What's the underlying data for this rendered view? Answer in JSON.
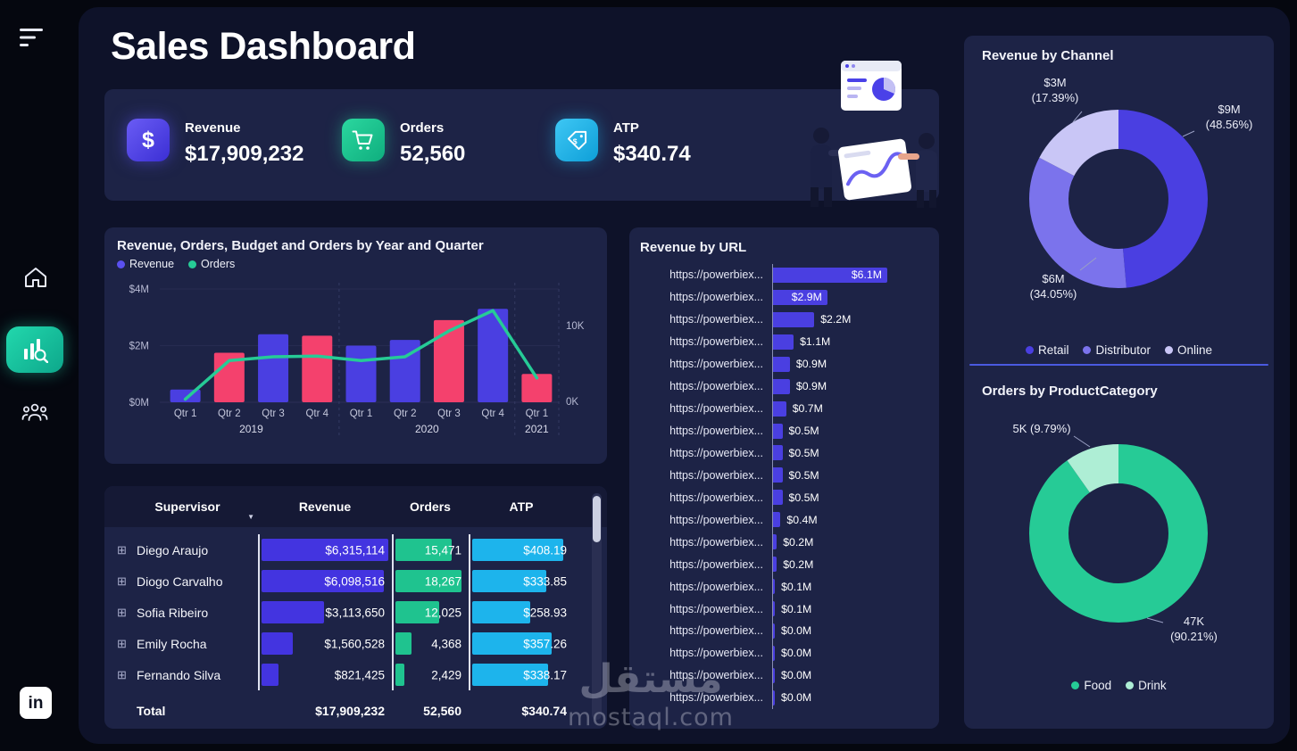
{
  "header": {
    "title": "Sales Dashboard"
  },
  "sidebar": {
    "items": [
      {
        "name": "menu"
      },
      {
        "name": "home"
      },
      {
        "name": "analytics",
        "active": true
      },
      {
        "name": "audience"
      },
      {
        "name": "linkedin",
        "label": "in"
      }
    ]
  },
  "kpis": {
    "items": [
      {
        "label": "Revenue",
        "value": "$17,909,232",
        "icon": "dollar-icon",
        "color": "#5347ee"
      },
      {
        "label": "Orders",
        "value": "52,560",
        "icon": "cart-icon",
        "color": "#1fc795"
      },
      {
        "label": "ATP",
        "value": "$340.74",
        "icon": "price-tag-icon",
        "color": "#1db4ec"
      }
    ]
  },
  "chart_data": [
    {
      "id": "quarterly-combo",
      "type": "bar",
      "title": "Revenue, Orders, Budget and Orders by Year and Quarter",
      "categories": [
        "Qtr 1",
        "Qtr 2",
        "Qtr 3",
        "Qtr 4",
        "Qtr 1",
        "Qtr 2",
        "Qtr 3",
        "Qtr 4",
        "Qtr 1"
      ],
      "year_groups": [
        {
          "label": "2019",
          "span": 4
        },
        {
          "label": "2020",
          "span": 4
        },
        {
          "label": "2021",
          "span": 1
        }
      ],
      "series": [
        {
          "name": "Revenue",
          "type": "bar",
          "unit": "$M",
          "values": [
            0.45,
            1.75,
            2.4,
            2.35,
            2.0,
            2.2,
            2.9,
            3.3,
            1.0
          ],
          "bar_colors": [
            "#4a3fe1",
            "#f4416d",
            "#4a3fe1",
            "#f4416d",
            "#4a3fe1",
            "#4a3fe1",
            "#f4416d",
            "#4a3fe1",
            "#f4416d"
          ]
        },
        {
          "name": "Orders",
          "type": "line",
          "unit": "K",
          "values": [
            0.4,
            5.5,
            6.0,
            6.1,
            5.5,
            6.0,
            9.4,
            12.1,
            3.2
          ],
          "color": "#26cb96"
        }
      ],
      "y_left": {
        "ticks": [
          {
            "label": "$4M",
            "value": 4
          },
          {
            "label": "$2M",
            "value": 2
          },
          {
            "label": "$0M",
            "value": 0
          }
        ],
        "max": 4
      },
      "y_right": {
        "ticks": [
          {
            "label": "10K",
            "value": 10
          },
          {
            "label": "0K",
            "value": 0
          }
        ]
      },
      "legend": [
        {
          "label": "Revenue",
          "color": "#5a50f0"
        },
        {
          "label": "Orders",
          "color": "#26cb96"
        }
      ]
    },
    {
      "id": "revenue-by-url",
      "type": "bar",
      "orientation": "horizontal",
      "title": "Revenue by URL",
      "category_label": "https://powerbiex...",
      "values": [
        6.1,
        2.9,
        2.2,
        1.1,
        0.9,
        0.9,
        0.7,
        0.5,
        0.5,
        0.5,
        0.5,
        0.4,
        0.2,
        0.2,
        0.1,
        0.1,
        0.04,
        0.03,
        0.03,
        0.02
      ],
      "value_labels": [
        "$6.1M",
        "$2.9M",
        "$2.2M",
        "$1.1M",
        "$0.9M",
        "$0.9M",
        "$0.7M",
        "$0.5M",
        "$0.5M",
        "$0.5M",
        "$0.5M",
        "$0.4M",
        "$0.2M",
        "$0.2M",
        "$0.1M",
        "$0.1M",
        "$0.0M",
        "$0.0M",
        "$0.0M",
        "$0.0M"
      ],
      "bar_color": "#4a3fe1"
    },
    {
      "id": "revenue-by-channel",
      "type": "pie",
      "title": "Revenue by Channel",
      "slices": [
        {
          "label": "Retail",
          "value_label": "$9M",
          "pct_label": "(48.56%)",
          "pct": 48.56,
          "color": "#4a3fe1"
        },
        {
          "label": "Distributor",
          "value_label": "$6M",
          "pct_label": "(34.05%)",
          "pct": 34.05,
          "color": "#7b73ec"
        },
        {
          "label": "Online",
          "value_label": "$3M",
          "pct_label": "(17.39%)",
          "pct": 17.39,
          "color": "#c9c6f6"
        }
      ],
      "legend_position": "bottom"
    },
    {
      "id": "orders-by-productcategory",
      "type": "pie",
      "title": "Orders by ProductCategory",
      "slices": [
        {
          "label": "Food",
          "value_label": "47K",
          "pct_label": "(90.21%)",
          "pct": 90.21,
          "color": "#26cb96"
        },
        {
          "label": "Drink",
          "value_label": "5K",
          "pct_label": "(9.79%)",
          "pct": 9.79,
          "color": "#aeeed5"
        }
      ],
      "legend_position": "bottom"
    }
  ],
  "table": {
    "columns": [
      "Supervisor",
      "Revenue",
      "Orders",
      "ATP"
    ],
    "bar_colors": {
      "revenue": "#4334e0",
      "orders": "#1fc38f",
      "atp": "#1db4ec"
    },
    "rows": [
      {
        "supervisor": "Diego Araujo",
        "revenue": "$6,315,114",
        "orders": "15,471",
        "atp": "$408.19"
      },
      {
        "supervisor": "Diogo Carvalho",
        "revenue": "$6,098,516",
        "orders": "18,267",
        "atp": "$333.85"
      },
      {
        "supervisor": "Sofia Ribeiro",
        "revenue": "$3,113,650",
        "orders": "12,025",
        "atp": "$258.93"
      },
      {
        "supervisor": "Emily Rocha",
        "revenue": "$1,560,528",
        "orders": "4,368",
        "atp": "$357.26"
      },
      {
        "supervisor": "Fernando Silva",
        "revenue": "$821,425",
        "orders": "2,429",
        "atp": "$338.17"
      }
    ],
    "total": {
      "label": "Total",
      "revenue": "$17,909,232",
      "orders": "52,560",
      "atp": "$340.74"
    }
  },
  "watermark": {
    "arabic": "مستقل",
    "domain": "mostaql.com"
  }
}
